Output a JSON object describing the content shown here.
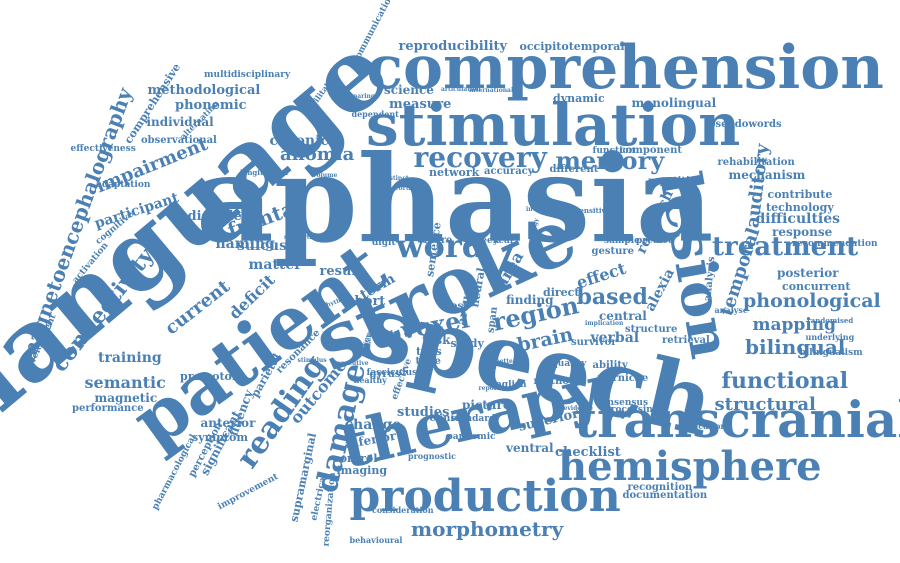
{
  "words": [
    "aphasia",
    "language",
    "speech",
    "stroke",
    "comprehension",
    "patient",
    "stimulation",
    "therapy",
    "transcranial",
    "lesion",
    "production",
    "hemisphere",
    "damage",
    "reading",
    "word",
    "recovery",
    "memory",
    "connectivity",
    "magnetoencephalography",
    "frontal",
    "treatment",
    "functional",
    "phonological",
    "temporal",
    "region",
    "voxel",
    "based",
    "morphometry",
    "structural",
    "bilingual",
    "auditory",
    "anomia",
    "impairment",
    "current",
    "deficit",
    "training",
    "semantic",
    "naming",
    "brain",
    "term",
    "verbal",
    "mapping",
    "effect",
    "alexia",
    "research",
    "reproducibility",
    "occipitotemporal",
    "methodological",
    "phonemic",
    "chronic",
    "measure",
    "dynamic",
    "monolingual",
    "participant",
    "disorder",
    "matter",
    "sulcus",
    "result",
    "digit",
    "short",
    "central",
    "superior",
    "inferior",
    "control",
    "imaging",
    "ventral",
    "checklist",
    "recognition",
    "documentation",
    "studies",
    "picture",
    "fluency",
    "anterior",
    "symptom",
    "magnetic",
    "performance",
    "premotor",
    "parietal",
    "supramarginal",
    "outcome",
    "change",
    "task",
    "study",
    "survivor",
    "ability",
    "method",
    "wernicke",
    "english",
    "clinical",
    "standard",
    "rehabilitation",
    "mechanism",
    "contribute",
    "technology",
    "difficulties",
    "response",
    "posterior",
    "concurrent",
    "recommendation",
    "analysis",
    "retrieval",
    "bilingualism",
    "pseudowords",
    "multidisciplinary",
    "communication",
    "science",
    "individual",
    "observational",
    "comprehensive",
    "development",
    "cognitive",
    "adaptation",
    "activation",
    "network",
    "accuracy",
    "different",
    "function",
    "component",
    "repetition",
    "sample",
    "predict",
    "finding",
    "direct",
    "area",
    "tdcs",
    "time",
    "year",
    "week",
    "data",
    "significant",
    "perception",
    "pharmacological",
    "improvement",
    "reorganization",
    "electrical",
    "pandemic",
    "prognostic",
    "processing",
    "consensus",
    "verification",
    "resonance",
    "arcuate",
    "gesture",
    "structure",
    "underlying",
    "analyse",
    "randomised",
    "severity",
    "neural",
    "more",
    "test",
    "span",
    "sentence",
    "effective",
    "quality",
    "gyrus",
    "healthy",
    "fasciculus",
    "dependent",
    "alternating",
    "effectiveness",
    "facilitation",
    "behavioural",
    "consideration",
    "international",
    "articulation",
    "comparing",
    "involved",
    "implication",
    "parallel",
    "baseline",
    "sensitive",
    "strategy",
    "subcortical",
    "cortical",
    "distinct",
    "longitudinal",
    "volume",
    "stimulus",
    "mode",
    "rhythm",
    "executive",
    "fibre",
    "evidence",
    "better",
    "reported"
  ]
}
